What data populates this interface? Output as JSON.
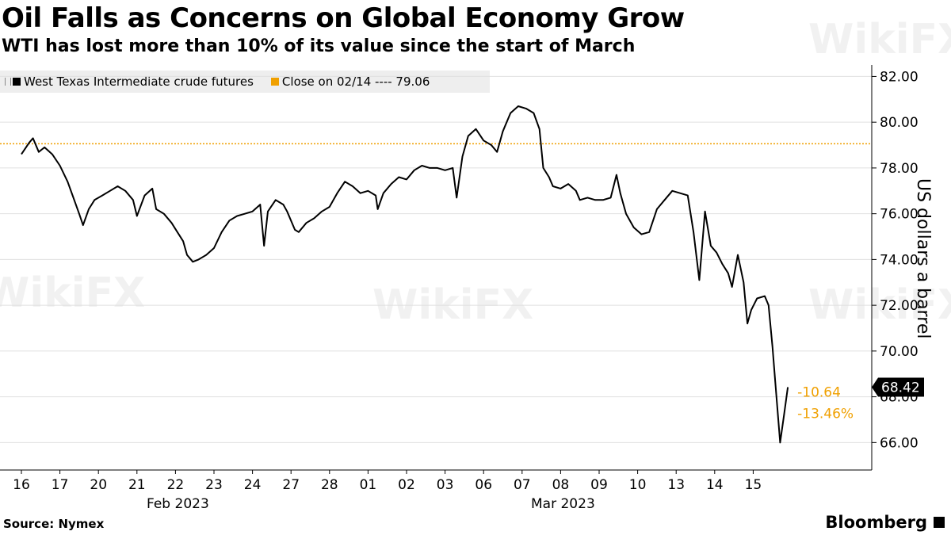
{
  "title": "Oil Falls as Concerns on Global Economy Grow",
  "subtitle": "WTI has lost more than 10% of its value since the start of March",
  "source": "Source: Nymex",
  "brand": "Bloomberg",
  "watermark": "WikiFX",
  "colors": {
    "series": "#000000",
    "reference": "#f0a000",
    "grid": "#e0e0e0",
    "legend_bg": "#eeeeee"
  },
  "chart_data": {
    "type": "line",
    "ylabel": "US dollars a barrel",
    "ylim": [
      64.8,
      82.5
    ],
    "yticks": [
      "82.00",
      "80.00",
      "78.00",
      "76.00",
      "74.00",
      "72.00",
      "70.00",
      "68.00",
      "66.00"
    ],
    "grid": true,
    "legend_position": "top-left",
    "x_categories": [
      "16",
      "17",
      "20",
      "21",
      "22",
      "23",
      "24",
      "27",
      "28",
      "01",
      "02",
      "03",
      "06",
      "07",
      "08",
      "09",
      "10",
      "13",
      "14",
      "15"
    ],
    "month_labels": [
      {
        "label": "Feb 2023",
        "at": 4
      },
      {
        "label": "Mar 2023",
        "at": 14
      }
    ],
    "series": [
      {
        "name": "West Texas Intermediate crude futures",
        "points": [
          [
            0,
            78.6
          ],
          [
            0.2,
            79.1
          ],
          [
            0.3,
            79.3
          ],
          [
            0.45,
            78.7
          ],
          [
            0.6,
            78.9
          ],
          [
            0.8,
            78.6
          ],
          [
            1.0,
            78.1
          ],
          [
            1.2,
            77.4
          ],
          [
            1.35,
            76.7
          ],
          [
            1.5,
            76.0
          ],
          [
            1.6,
            75.5
          ],
          [
            1.75,
            76.2
          ],
          [
            1.9,
            76.6
          ],
          [
            2.1,
            76.8
          ],
          [
            2.3,
            77.0
          ],
          [
            2.5,
            77.2
          ],
          [
            2.7,
            77.0
          ],
          [
            2.9,
            76.6
          ],
          [
            3.0,
            75.9
          ],
          [
            3.2,
            76.8
          ],
          [
            3.4,
            77.1
          ],
          [
            3.5,
            76.2
          ],
          [
            3.7,
            76.0
          ],
          [
            3.9,
            75.6
          ],
          [
            4.05,
            75.2
          ],
          [
            4.2,
            74.8
          ],
          [
            4.3,
            74.2
          ],
          [
            4.45,
            73.9
          ],
          [
            4.6,
            74.0
          ],
          [
            4.8,
            74.2
          ],
          [
            5.0,
            74.5
          ],
          [
            5.2,
            75.2
          ],
          [
            5.4,
            75.7
          ],
          [
            5.6,
            75.9
          ],
          [
            5.8,
            76.0
          ],
          [
            6.0,
            76.1
          ],
          [
            6.2,
            76.4
          ],
          [
            6.3,
            74.6
          ],
          [
            6.4,
            76.1
          ],
          [
            6.6,
            76.6
          ],
          [
            6.8,
            76.4
          ],
          [
            6.9,
            76.1
          ],
          [
            7.1,
            75.3
          ],
          [
            7.2,
            75.2
          ],
          [
            7.4,
            75.6
          ],
          [
            7.6,
            75.8
          ],
          [
            7.8,
            76.1
          ],
          [
            8.0,
            76.3
          ],
          [
            8.2,
            76.9
          ],
          [
            8.4,
            77.4
          ],
          [
            8.6,
            77.2
          ],
          [
            8.8,
            76.9
          ],
          [
            9.0,
            77.0
          ],
          [
            9.2,
            76.8
          ],
          [
            9.25,
            76.2
          ],
          [
            9.4,
            76.9
          ],
          [
            9.6,
            77.3
          ],
          [
            9.8,
            77.6
          ],
          [
            10.0,
            77.5
          ],
          [
            10.2,
            77.9
          ],
          [
            10.4,
            78.1
          ],
          [
            10.6,
            78.0
          ],
          [
            10.8,
            78.0
          ],
          [
            11.0,
            77.9
          ],
          [
            11.2,
            78.0
          ],
          [
            11.3,
            76.7
          ],
          [
            11.45,
            78.5
          ],
          [
            11.6,
            79.4
          ],
          [
            11.8,
            79.7
          ],
          [
            12.0,
            79.2
          ],
          [
            12.2,
            79.0
          ],
          [
            12.35,
            78.7
          ],
          [
            12.5,
            79.6
          ],
          [
            12.7,
            80.4
          ],
          [
            12.9,
            80.7
          ],
          [
            13.1,
            80.6
          ],
          [
            13.3,
            80.4
          ],
          [
            13.45,
            79.7
          ],
          [
            13.55,
            78.0
          ],
          [
            13.7,
            77.6
          ],
          [
            13.8,
            77.2
          ],
          [
            14.0,
            77.1
          ],
          [
            14.2,
            77.3
          ],
          [
            14.4,
            77.0
          ],
          [
            14.5,
            76.6
          ],
          [
            14.7,
            76.7
          ],
          [
            14.9,
            76.6
          ],
          [
            15.1,
            76.6
          ],
          [
            15.3,
            76.7
          ],
          [
            15.45,
            77.7
          ],
          [
            15.55,
            76.9
          ],
          [
            15.7,
            76.0
          ],
          [
            15.9,
            75.4
          ],
          [
            16.1,
            75.1
          ],
          [
            16.3,
            75.2
          ],
          [
            16.5,
            76.2
          ],
          [
            16.7,
            76.6
          ],
          [
            16.9,
            77.0
          ],
          [
            17.1,
            76.9
          ],
          [
            17.3,
            76.8
          ],
          [
            17.45,
            75.2
          ],
          [
            17.6,
            73.1
          ],
          [
            17.75,
            76.1
          ],
          [
            17.9,
            74.6
          ],
          [
            18.05,
            74.3
          ],
          [
            18.2,
            73.8
          ],
          [
            18.35,
            73.4
          ],
          [
            18.45,
            72.8
          ],
          [
            18.6,
            74.2
          ],
          [
            18.75,
            73.0
          ],
          [
            18.85,
            71.2
          ],
          [
            18.95,
            71.8
          ],
          [
            19.1,
            72.3
          ],
          [
            19.3,
            72.4
          ],
          [
            19.4,
            72.0
          ],
          [
            19.5,
            70.2
          ],
          [
            19.58,
            68.5
          ],
          [
            19.7,
            66.0
          ],
          [
            19.8,
            67.2
          ],
          [
            19.9,
            68.42
          ]
        ]
      }
    ],
    "reference_line": {
      "label": "Close on 02/14 ---- 79.06",
      "value": 79.06
    },
    "last_value_label": "68.42",
    "annotations": [
      "-10.64",
      "-13.46%"
    ]
  }
}
